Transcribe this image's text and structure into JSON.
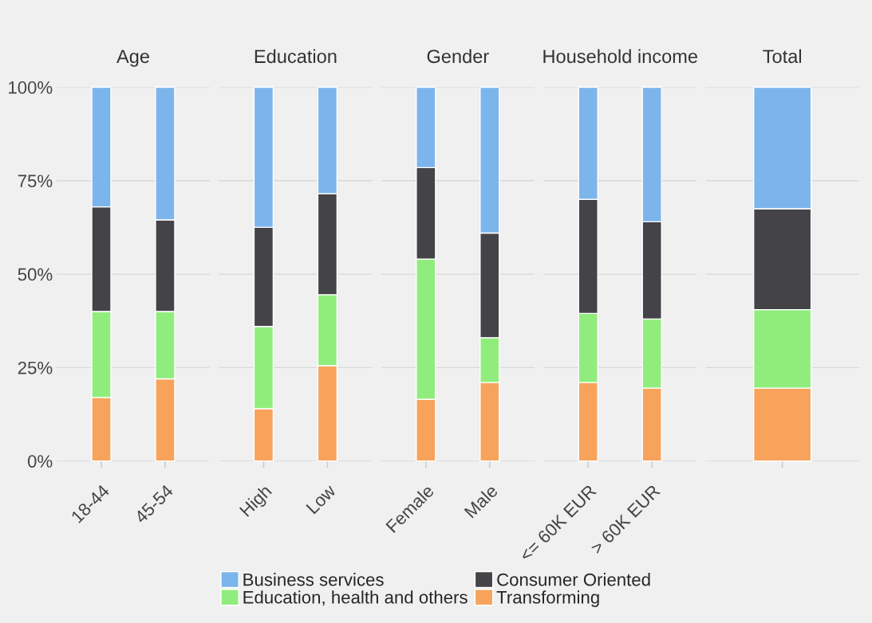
{
  "chart_data": [
    {
      "type": "bar",
      "title": "Age",
      "stacked": true,
      "categories": [
        "18-44",
        "45-54"
      ],
      "ylim": [
        0,
        100
      ],
      "yticks": [
        {
          "value": 0,
          "label": "0%"
        },
        {
          "value": 25,
          "label": "25%"
        },
        {
          "value": 50,
          "label": "50%"
        },
        {
          "value": 75,
          "label": "75%"
        },
        {
          "value": 100,
          "label": "100%"
        }
      ],
      "grid": "y",
      "legend": "bottom",
      "series": [
        {
          "name": "Transforming",
          "color": "#f7a35c",
          "values": [
            17,
            22
          ]
        },
        {
          "name": "Education, health and others",
          "color": "#90ed7d",
          "values": [
            23,
            18
          ]
        },
        {
          "name": "Consumer Oriented",
          "color": "#434348",
          "values": [
            28,
            24.5
          ]
        },
        {
          "name": "Business services",
          "color": "#7cb5ec",
          "values": [
            32,
            35.5
          ]
        }
      ]
    },
    {
      "type": "bar",
      "title": "Education",
      "stacked": true,
      "categories": [
        "High",
        "Low"
      ],
      "ylim": [
        0,
        100
      ],
      "yticks": [
        0,
        25,
        50,
        75,
        100
      ],
      "grid": "y",
      "tick_labels": "x",
      "series": [
        {
          "color": "#f7a35c",
          "values": [
            14,
            25.5
          ]
        },
        {
          "color": "#90ed7d",
          "values": [
            22,
            19
          ]
        },
        {
          "color": "#434348",
          "values": [
            26.5,
            27
          ]
        },
        {
          "color": "#7cb5ec",
          "values": [
            37.5,
            28.5
          ]
        }
      ]
    },
    {
      "type": "bar",
      "title": "Gender",
      "stacked": true,
      "categories": [
        "Female",
        "Male"
      ],
      "ylim": [
        0,
        100
      ],
      "yticks": [
        0,
        25,
        50,
        75,
        100
      ],
      "grid": "y",
      "tick_labels": "x",
      "series": [
        {
          "color": "#f7a35c",
          "values": [
            16.5,
            21
          ]
        },
        {
          "color": "#90ed7d",
          "values": [
            37.5,
            12
          ]
        },
        {
          "color": "#434348",
          "values": [
            24.5,
            28
          ]
        },
        {
          "color": "#7cb5ec",
          "values": [
            21.5,
            39
          ]
        }
      ]
    },
    {
      "type": "bar",
      "title": "Household income",
      "stacked": true,
      "categories": [
        "<= 60K EUR",
        "> 60K EUR"
      ],
      "ylim": [
        0,
        100
      ],
      "yticks": [
        0,
        25,
        50,
        75,
        100
      ],
      "grid": "y",
      "tick_labels": "x",
      "series": [
        {
          "color": "#f7a35c",
          "values": [
            21,
            19.5
          ]
        },
        {
          "color": "#90ed7d",
          "values": [
            18.5,
            18.5
          ]
        },
        {
          "color": "#434348",
          "values": [
            30.5,
            26
          ]
        },
        {
          "color": "#7cb5ec",
          "values": [
            30,
            36
          ]
        }
      ]
    },
    {
      "type": "bar",
      "title": "Total",
      "stacked": true,
      "categories": [
        null
      ],
      "ylim": [
        0,
        100
      ],
      "yticks": [
        0,
        25,
        50,
        75,
        100
      ],
      "grid": "y",
      "tick_labels": "x",
      "series": [
        {
          "color": "#f7a35c",
          "values": [
            19.5
          ]
        },
        {
          "color": "#90ed7d",
          "values": [
            21
          ]
        },
        {
          "color": "#434348",
          "values": [
            27
          ]
        },
        {
          "color": "#7cb5ec",
          "values": [
            32.5
          ]
        }
      ]
    }
  ]
}
